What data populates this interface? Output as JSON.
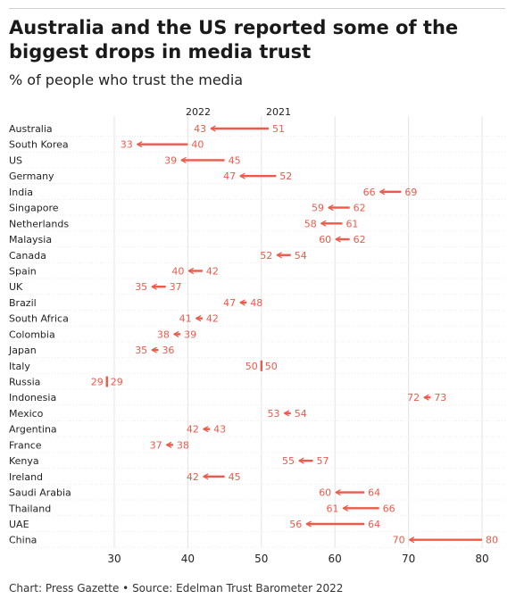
{
  "title": "Australia and the US reported some of the biggest drops in media trust",
  "subtitle": "% of people who trust the media",
  "footer": "Chart: Press Gazette • Source: Edelman Trust Barometer 2022",
  "colors": {
    "arrow": "#ec5a4a",
    "grid": "#e4e4e4",
    "label": "#ec5a4a",
    "text": "#222222"
  },
  "chart_data": {
    "type": "arrow",
    "legend": [
      "2022",
      "2021"
    ],
    "xlim": [
      25,
      81
    ],
    "xticks": [
      30,
      40,
      50,
      60,
      70,
      80
    ],
    "grid": true,
    "series": [
      {
        "name": "2021",
        "values": [
          51,
          40,
          45,
          52,
          69,
          62,
          61,
          62,
          54,
          42,
          37,
          48,
          42,
          39,
          36,
          50,
          29,
          73,
          54,
          43,
          38,
          57,
          45,
          64,
          66,
          64,
          80
        ]
      },
      {
        "name": "2022",
        "values": [
          43,
          33,
          39,
          47,
          66,
          59,
          58,
          60,
          52,
          40,
          35,
          47,
          41,
          38,
          35,
          50,
          29,
          72,
          53,
          42,
          37,
          55,
          42,
          60,
          61,
          56,
          70
        ]
      }
    ],
    "categories": [
      "Australia",
      "South Korea",
      "US",
      "Germany",
      "India",
      "Singapore",
      "Netherlands",
      "Malaysia",
      "Canada",
      "Spain",
      "UK",
      "Brazil",
      "South Africa",
      "Colombia",
      "Japan",
      "Italy",
      "Russia",
      "Indonesia",
      "Mexico",
      "Argentina",
      "France",
      "Kenya",
      "Ireland",
      "Saudi Arabia",
      "Thailand",
      "UAE",
      "China"
    ]
  }
}
